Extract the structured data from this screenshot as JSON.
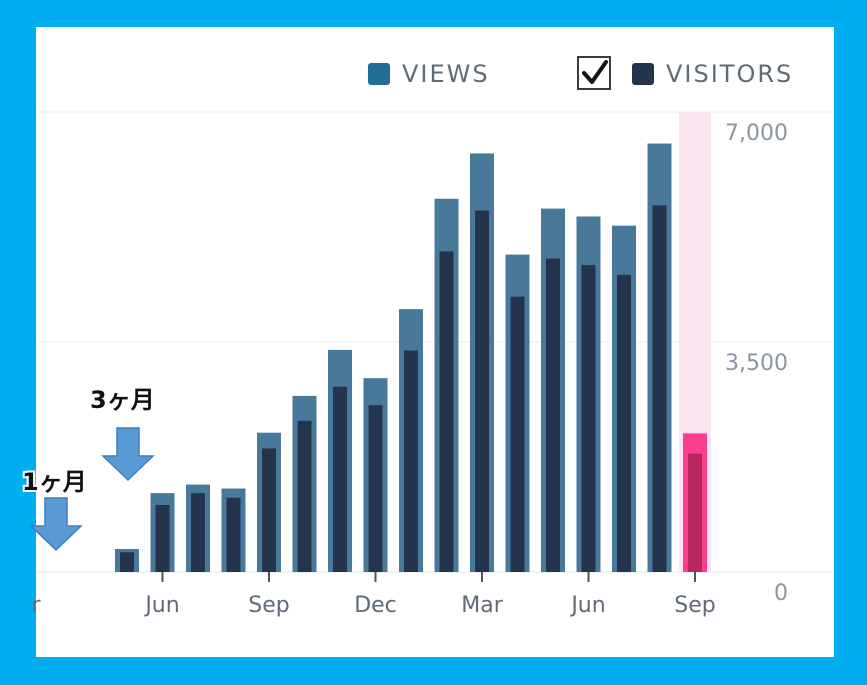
{
  "legend": {
    "views_label": "VIEWS",
    "visitors_label": "VISITORS",
    "visitors_checked": true
  },
  "annotations": {
    "one_month": "1ヶ月",
    "three_month": "3ヶ月"
  },
  "colors": {
    "views": "#48789a",
    "visitors": "#24344d",
    "highlight_views": "#ff3d8f",
    "highlight_visitors": "#b8265e",
    "highlight_band": "#fbe6f1",
    "arrow": "#5b9bd5",
    "frame": "#00aeef"
  },
  "chart_data": {
    "type": "bar",
    "ylim": [
      0,
      7000
    ],
    "yticks": [
      "0",
      "3,500",
      "7,000"
    ],
    "xticks": [
      {
        "index": 0,
        "label": "r"
      },
      {
        "index": 3,
        "label": "Jun"
      },
      {
        "index": 6,
        "label": "Sep"
      },
      {
        "index": 9,
        "label": "Dec"
      },
      {
        "index": 12,
        "label": "Mar"
      },
      {
        "index": 15,
        "label": "Jun"
      },
      {
        "index": 18,
        "label": "Sep"
      }
    ],
    "highlight_index": 18,
    "series": [
      {
        "name": "VIEWS",
        "values": [
          0,
          350,
          1200,
          1330,
          1270,
          2120,
          2680,
          3380,
          2950,
          4000,
          5680,
          6370,
          4830,
          5530,
          5410,
          5270,
          6520,
          2110
        ]
      },
      {
        "name": "VISITORS",
        "values": [
          0,
          300,
          1020,
          1200,
          1130,
          1880,
          2300,
          2820,
          2540,
          3370,
          4880,
          5500,
          4190,
          4770,
          4670,
          4520,
          5580,
          1800
        ]
      }
    ],
    "categories_count": 18
  }
}
